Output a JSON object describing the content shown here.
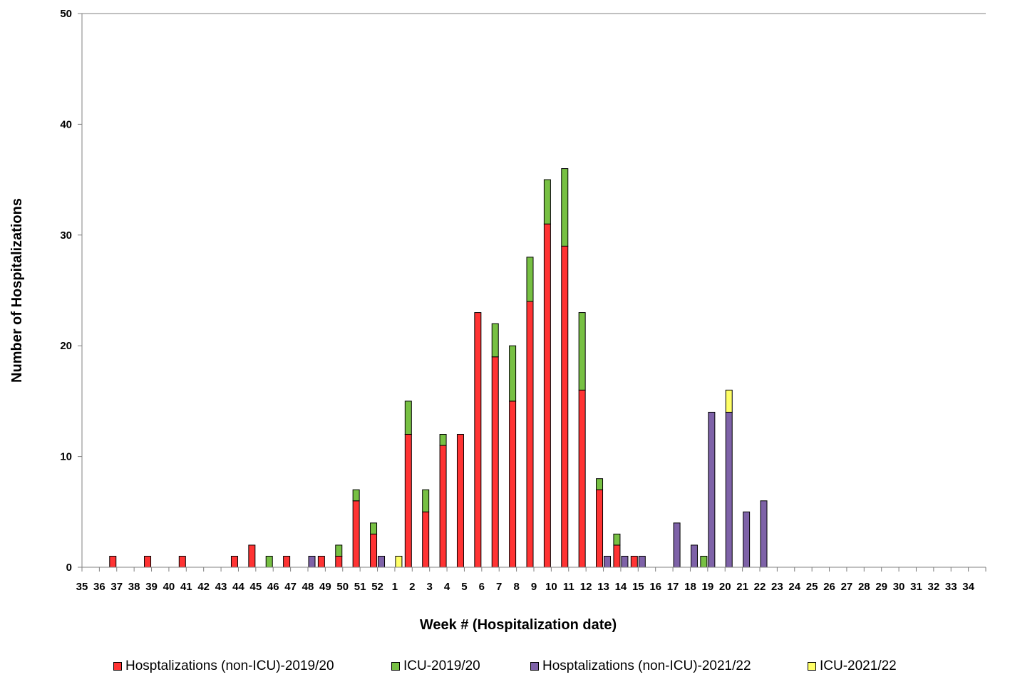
{
  "chart_data": {
    "type": "bar",
    "stacked": true,
    "xlabel": "Week # (Hospitalization date)",
    "ylabel": "Number of Hospitalizations",
    "ylim": [
      0,
      50
    ],
    "yticks": [
      0,
      10,
      20,
      30,
      40,
      50
    ],
    "grid": false,
    "legend_position": "bottom",
    "categories": [
      "35",
      "36",
      "37",
      "38",
      "39",
      "40",
      "41",
      "42",
      "43",
      "44",
      "45",
      "46",
      "47",
      "48",
      "49",
      "50",
      "51",
      "52",
      "1",
      "2",
      "3",
      "4",
      "5",
      "6",
      "7",
      "8",
      "9",
      "10",
      "11",
      "12",
      "13",
      "14",
      "15",
      "16",
      "17",
      "18",
      "19",
      "20",
      "21",
      "22",
      "23",
      "24",
      "25",
      "26",
      "27",
      "28",
      "29",
      "30",
      "31",
      "32",
      "33",
      "34"
    ],
    "groups": [
      {
        "season": "2019/20",
        "stack": [
          {
            "name": "Hosptalizations (non-ICU)-2019/20",
            "color": "#ff3333",
            "values": [
              0,
              1,
              0,
              1,
              0,
              1,
              0,
              0,
              1,
              2,
              0,
              1,
              0,
              1,
              1,
              6,
              3,
              0,
              12,
              5,
              11,
              12,
              23,
              19,
              15,
              24,
              31,
              29,
              16,
              7,
              2,
              1,
              0,
              0,
              0,
              0,
              0,
              0,
              0,
              0,
              0,
              0,
              0,
              0,
              0,
              0,
              0,
              0,
              0,
              0,
              0,
              0
            ]
          },
          {
            "name": "ICU-2019/20",
            "color": "#77c043",
            "values": [
              0,
              0,
              0,
              0,
              0,
              0,
              0,
              0,
              0,
              0,
              1,
              0,
              0,
              0,
              1,
              1,
              1,
              0,
              3,
              2,
              1,
              0,
              0,
              3,
              5,
              4,
              4,
              7,
              7,
              1,
              1,
              0,
              0,
              0,
              0,
              1,
              0,
              0,
              0,
              0,
              0,
              0,
              0,
              0,
              0,
              0,
              0,
              0,
              0,
              0,
              0,
              0
            ]
          }
        ]
      },
      {
        "season": "2021/22",
        "stack": [
          {
            "name": "Hosptalizations (non-ICU)-2021/22",
            "color": "#7e62a8",
            "values": [
              0,
              0,
              0,
              0,
              0,
              0,
              0,
              0,
              0,
              0,
              0,
              0,
              1,
              0,
              0,
              0,
              1,
              0,
              0,
              0,
              0,
              0,
              0,
              0,
              0,
              0,
              0,
              0,
              0,
              1,
              1,
              1,
              0,
              4,
              2,
              14,
              14,
              5,
              6,
              0,
              0,
              0,
              0,
              0,
              0,
              0,
              0,
              0,
              0,
              0,
              0,
              0
            ]
          },
          {
            "name": "ICU-2021/22",
            "color": "#ffff66",
            "values": [
              0,
              0,
              0,
              0,
              0,
              0,
              0,
              0,
              0,
              0,
              0,
              0,
              0,
              0,
              0,
              0,
              0,
              1,
              0,
              0,
              0,
              0,
              0,
              0,
              0,
              0,
              0,
              0,
              0,
              0,
              0,
              0,
              0,
              0,
              0,
              0,
              2,
              0,
              0,
              0,
              0,
              0,
              0,
              0,
              0,
              0,
              0,
              0,
              0,
              0,
              0,
              0
            ]
          }
        ]
      }
    ]
  }
}
